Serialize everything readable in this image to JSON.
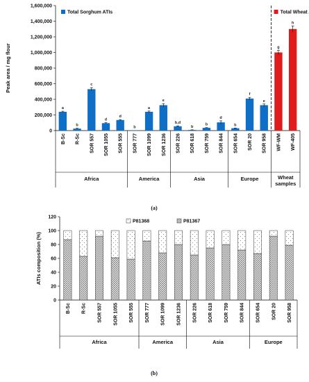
{
  "chart_data": [
    {
      "type": "bar",
      "ylabel": "Peak area / mg flour",
      "ylim": [
        0,
        1600000
      ],
      "yticks": [
        "0",
        "200,000",
        "400,000",
        "600,000",
        "800,000",
        "1,000,000",
        "1,200,000",
        "1,400,000",
        "1,600,000"
      ],
      "legend_position": "top-left",
      "series": [
        {
          "name": "Total Sorghum ATIs",
          "color": "#0f6fc6"
        },
        {
          "name": "Total Wheat ATIs",
          "color": "#e01b1b"
        }
      ],
      "categories": [
        "B-Sc",
        "R-Sc",
        "SOR 557",
        "SOR 1055",
        "SOR 555",
        "SOR 777",
        "SOR 1099",
        "SOR 1236",
        "SOR 226",
        "SOR 618",
        "SOR 759",
        "SOR 844",
        "SOR 654",
        "SOR 20",
        "SOR 958",
        "WF-WM",
        "WF-405"
      ],
      "values": [
        240000,
        25000,
        530000,
        95000,
        135000,
        3000,
        240000,
        325000,
        55000,
        8000,
        35000,
        105000,
        30000,
        410000,
        325000,
        1000000,
        1300000
      ],
      "errors": [
        8000,
        4000,
        20000,
        6000,
        6000,
        0,
        10000,
        20000,
        6000,
        2000,
        3000,
        20000,
        3000,
        15000,
        15000,
        25000,
        40000
      ],
      "series_index": [
        0,
        0,
        0,
        0,
        0,
        0,
        0,
        0,
        0,
        0,
        0,
        0,
        0,
        0,
        0,
        1,
        1
      ],
      "letters": [
        "a",
        "b",
        "c",
        "d",
        "d",
        "b",
        "a",
        "e",
        "b,d",
        "b",
        "b",
        "d",
        "b",
        "f",
        "e",
        "g",
        "h"
      ],
      "groups": [
        {
          "label": "Africa",
          "count": 5
        },
        {
          "label": "America",
          "count": 3
        },
        {
          "label": "Asia",
          "count": 4
        },
        {
          "label": "Europe",
          "count": 3
        },
        {
          "label": "Wheat samples",
          "count": 2
        }
      ],
      "caption": "(a)"
    },
    {
      "type": "bar",
      "stacked": true,
      "ylabel": "ATIs composition (%)",
      "ylim": [
        0,
        120
      ],
      "yticks": [
        "0",
        "20",
        "40",
        "60",
        "80",
        "100",
        "120"
      ],
      "legend_position": "top",
      "series": [
        {
          "name": "P81367",
          "values": [
            87,
            63,
            92,
            61,
            59,
            85,
            68,
            80,
            65,
            75,
            80,
            72,
            67,
            92,
            79
          ]
        },
        {
          "name": "P81368",
          "values": [
            13,
            37,
            8,
            39,
            41,
            15,
            32,
            20,
            35,
            25,
            20,
            28,
            33,
            8,
            21
          ]
        }
      ],
      "legend_order": [
        "P81368",
        "P81367"
      ],
      "categories": [
        "B-Sc",
        "R-Sc",
        "SOR 557",
        "SOR 1055",
        "SOR 555",
        "SOR 777",
        "SOR 1099",
        "SOR 1236",
        "SOR 226",
        "SOR 618",
        "SOR 759",
        "SOR 844",
        "SOR 654",
        "SOR 20",
        "SOR 958"
      ],
      "groups": [
        {
          "label": "Africa",
          "count": 5
        },
        {
          "label": "America",
          "count": 3
        },
        {
          "label": "Asia",
          "count": 4
        },
        {
          "label": "Europe",
          "count": 3
        }
      ],
      "caption": "(b)"
    }
  ]
}
